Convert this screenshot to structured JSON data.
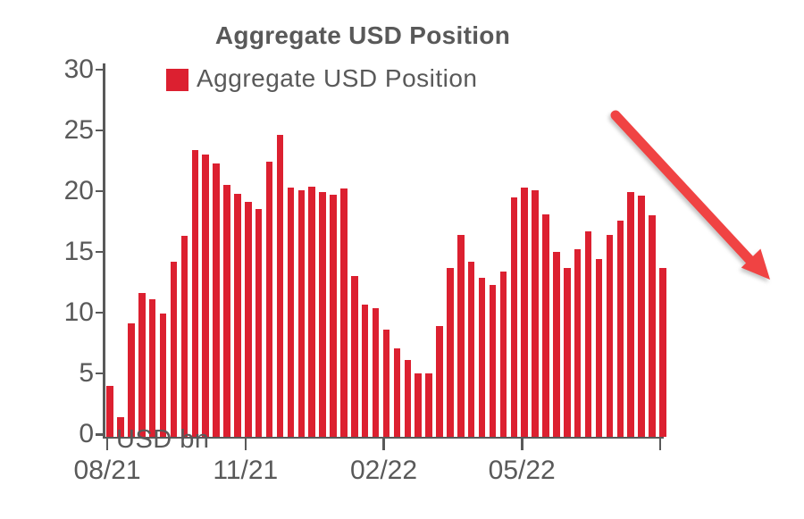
{
  "chart_data": {
    "type": "bar",
    "title": "Aggregate USD Position",
    "legend": [
      {
        "label": "Aggregate USD Position",
        "color": "#DC2030"
      }
    ],
    "ylabel": "USD bn",
    "ylim": [
      0,
      30
    ],
    "y_ticks": [
      0,
      5,
      10,
      15,
      20,
      25,
      30
    ],
    "x_ticks": [
      {
        "label": "08/21",
        "index": 0
      },
      {
        "label": "11/21",
        "index": 13
      },
      {
        "label": "02/22",
        "index": 26
      },
      {
        "label": "05/22",
        "index": 39
      },
      {
        "label": "",
        "index": 52
      }
    ],
    "values": [
      4.0,
      1.4,
      9.1,
      11.6,
      11.1,
      9.9,
      14.2,
      16.3,
      23.4,
      23.0,
      22.3,
      20.5,
      19.8,
      19.1,
      18.5,
      22.4,
      24.6,
      20.3,
      20.1,
      20.4,
      19.9,
      19.7,
      20.2,
      13.0,
      10.7,
      10.4,
      8.6,
      7.1,
      6.1,
      5.0,
      5.0,
      8.9,
      13.7,
      16.4,
      14.2,
      12.9,
      12.3,
      13.4,
      19.5,
      20.3,
      20.1,
      18.1,
      15.0,
      13.7,
      15.2,
      16.7,
      14.4,
      16.4,
      17.6,
      19.9,
      19.6,
      18.0,
      13.7
    ],
    "bar_color": "#DC2030",
    "grid": false,
    "legend_position": "top",
    "annotation": {
      "type": "downward-trend-arrow",
      "color": "#F04343"
    }
  },
  "colors": {
    "axis": "#595959",
    "text": "#595959",
    "background": "#ffffff"
  }
}
